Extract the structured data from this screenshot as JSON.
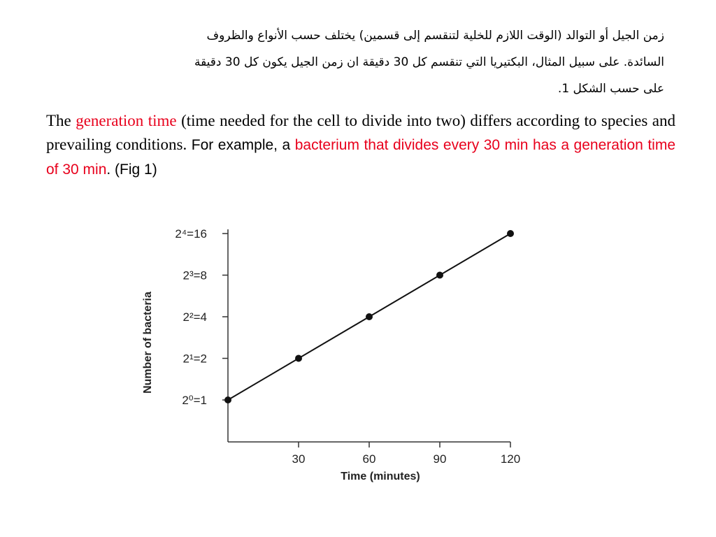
{
  "arabic_text": {
    "line1": "زمن الجيل أو التوالد (الوقت اللازم للخلية لتنقسم إلى قسمين) يختلف حسب الأنواع والظروف",
    "line2": "السائدة. على سبيل المثال، البكتيريا التي تنقسم كل 30 دقيقة ان زمن الجيل يكون كل 30 دقيقة",
    "line3": "على حسب الشكل 1."
  },
  "english_text": {
    "part1": "The ",
    "highlight1": "generation time",
    "part2": " (time needed for the cell to divide into two) differs according to species and prevailing conditions.",
    "part3": " For example, a ",
    "highlight2": "bacterium that divides every 30 min has a generation time of 30 min",
    "part4": ". (Fig 1)"
  },
  "chart_data": {
    "type": "line",
    "x": [
      0,
      30,
      60,
      90,
      120
    ],
    "y": [
      1,
      2,
      4,
      8,
      16
    ],
    "xticks": [
      "30",
      "60",
      "90",
      "120"
    ],
    "yticks": [
      "2⁰=1",
      "2¹=2",
      "2²=4",
      "2³=8",
      "2⁴=16"
    ],
    "xlabel": "Time (minutes)",
    "ylabel": "Number of bacteria",
    "xlim": [
      0,
      120
    ],
    "yscale": "log2",
    "grid": false
  },
  "colors": {
    "highlight": "#e8001c"
  }
}
